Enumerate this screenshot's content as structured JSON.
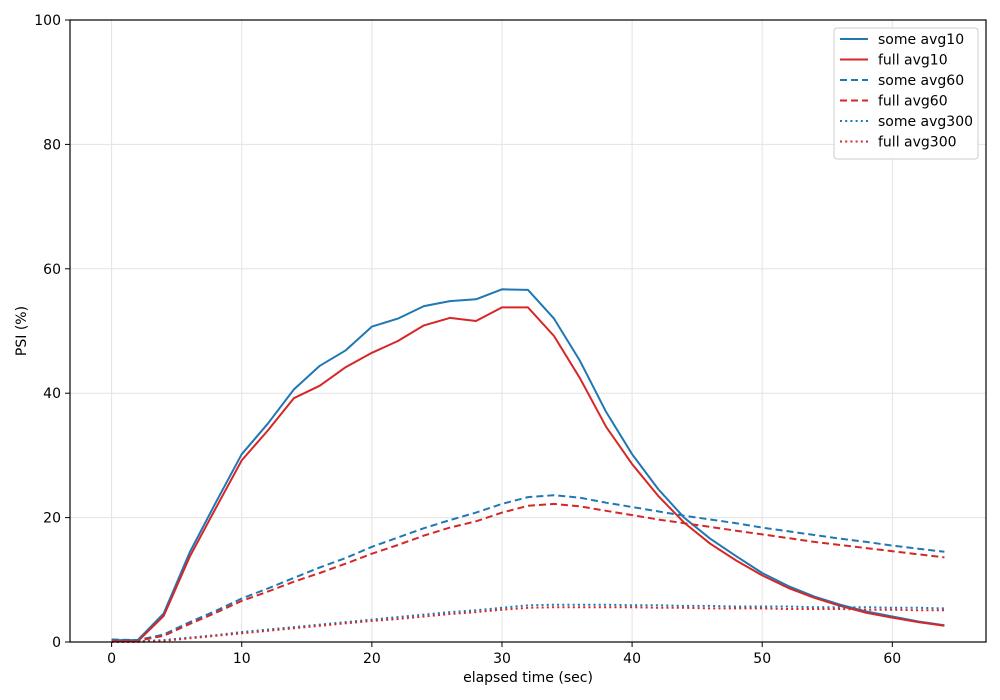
{
  "chart_data": {
    "type": "line",
    "title": "",
    "xlabel": "elapsed time (sec)",
    "ylabel": "PSI (%)",
    "xlim": [
      -3.2,
      67.2
    ],
    "ylim": [
      0,
      100
    ],
    "xticks": [
      0,
      10,
      20,
      30,
      40,
      50,
      60
    ],
    "yticks": [
      0,
      20,
      40,
      60,
      80,
      100
    ],
    "grid": true,
    "legend_position": "top-right",
    "x": [
      0,
      2,
      4,
      6,
      8,
      10,
      12,
      14,
      16,
      18,
      20,
      22,
      24,
      26,
      28,
      30,
      32,
      34,
      36,
      38,
      40,
      42,
      44,
      46,
      48,
      50,
      52,
      54,
      56,
      58,
      60,
      62,
      64
    ],
    "series": [
      {
        "name": "some avg10",
        "color": "#1f77b4",
        "style": "solid",
        "values": [
          0.3,
          0.3,
          4.6,
          14.4,
          22.4,
          30.2,
          35.1,
          40.6,
          44.4,
          46.9,
          50.7,
          52.0,
          54.0,
          54.8,
          55.1,
          56.7,
          56.6,
          52.0,
          45.2,
          37.0,
          30.2,
          24.6,
          20.0,
          16.6,
          13.8,
          11.1,
          9.0,
          7.3,
          6.0,
          4.9,
          4.1,
          3.3,
          2.7
        ]
      },
      {
        "name": "full avg10",
        "color": "#d62728",
        "style": "solid",
        "values": [
          0.1,
          0.1,
          4.2,
          13.7,
          21.5,
          29.2,
          34.0,
          39.2,
          41.2,
          44.2,
          46.5,
          48.4,
          50.9,
          52.1,
          51.6,
          53.8,
          53.8,
          49.2,
          42.4,
          34.6,
          28.6,
          23.5,
          19.2,
          15.8,
          13.1,
          10.7,
          8.7,
          7.1,
          5.8,
          4.7,
          3.9,
          3.2,
          2.6
        ]
      },
      {
        "name": "some avg60",
        "color": "#1f77b4",
        "style": "dashed",
        "values": [
          0.4,
          0.3,
          1.2,
          3.2,
          5.0,
          7.0,
          8.6,
          10.3,
          12.0,
          13.5,
          15.3,
          16.8,
          18.3,
          19.6,
          20.8,
          22.2,
          23.3,
          23.6,
          23.2,
          22.4,
          21.7,
          21.0,
          20.3,
          19.7,
          19.1,
          18.4,
          17.8,
          17.2,
          16.6,
          16.1,
          15.5,
          15.0,
          14.5
        ]
      },
      {
        "name": "full avg60",
        "color": "#d62728",
        "style": "dashed",
        "values": [
          0.2,
          0.2,
          1.0,
          2.9,
          4.7,
          6.6,
          8.1,
          9.7,
          11.1,
          12.6,
          14.2,
          15.6,
          17.1,
          18.4,
          19.4,
          20.8,
          21.9,
          22.2,
          21.8,
          21.1,
          20.4,
          19.7,
          19.1,
          18.5,
          17.9,
          17.3,
          16.7,
          16.1,
          15.6,
          15.1,
          14.6,
          14.1,
          13.6
        ]
      },
      {
        "name": "some avg300",
        "color": "#1f77b4",
        "style": "dotted",
        "values": [
          0.1,
          0.1,
          0.3,
          0.7,
          1.1,
          1.6,
          2.0,
          2.4,
          2.8,
          3.2,
          3.6,
          4.0,
          4.4,
          4.8,
          5.1,
          5.5,
          5.9,
          6.0,
          6.0,
          6.0,
          5.9,
          5.9,
          5.8,
          5.8,
          5.7,
          5.7,
          5.7,
          5.6,
          5.6,
          5.6,
          5.5,
          5.5,
          5.4
        ]
      },
      {
        "name": "full avg300",
        "color": "#d62728",
        "style": "dotted",
        "values": [
          0.0,
          0.0,
          0.2,
          0.6,
          1.0,
          1.4,
          1.8,
          2.2,
          2.6,
          3.0,
          3.4,
          3.7,
          4.1,
          4.5,
          4.8,
          5.2,
          5.5,
          5.6,
          5.6,
          5.6,
          5.6,
          5.5,
          5.5,
          5.4,
          5.4,
          5.4,
          5.3,
          5.3,
          5.3,
          5.2,
          5.2,
          5.1,
          5.1
        ]
      }
    ]
  }
}
